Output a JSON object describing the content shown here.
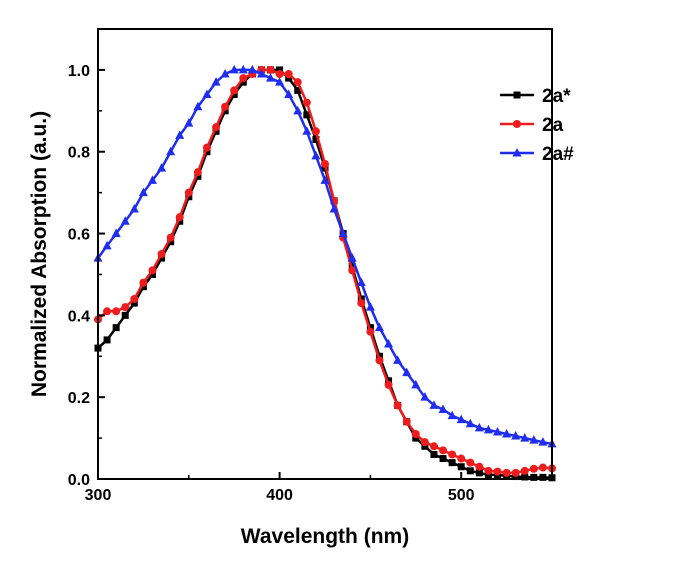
{
  "chart_data": {
    "type": "line",
    "xlabel": "Wavelength (nm)",
    "ylabel": "Normalized Absorption (a.u.)",
    "xlim": [
      300,
      550
    ],
    "ylim": [
      0.0,
      1.1
    ],
    "x_ticks": [
      "300",
      "400",
      "500"
    ],
    "y_ticks": [
      "0.0",
      "0.2",
      "0.4",
      "0.6",
      "0.8",
      "1.0"
    ],
    "legend_position": "top-right",
    "grid": false,
    "series": [
      {
        "name": "2a*",
        "color": "#000000",
        "marker": "square",
        "x": [
          300,
          305,
          310,
          315,
          320,
          325,
          330,
          335,
          340,
          345,
          350,
          355,
          360,
          365,
          370,
          375,
          380,
          385,
          390,
          395,
          400,
          405,
          410,
          415,
          420,
          425,
          430,
          435,
          440,
          445,
          450,
          455,
          460,
          465,
          470,
          475,
          480,
          485,
          490,
          495,
          500,
          505,
          510,
          515,
          520,
          525,
          530,
          535,
          540,
          545,
          550
        ],
        "y": [
          0.32,
          0.34,
          0.37,
          0.4,
          0.43,
          0.47,
          0.5,
          0.54,
          0.58,
          0.63,
          0.69,
          0.74,
          0.8,
          0.85,
          0.9,
          0.94,
          0.97,
          0.99,
          1.0,
          1.0,
          1.0,
          0.98,
          0.95,
          0.89,
          0.83,
          0.76,
          0.68,
          0.6,
          0.52,
          0.44,
          0.37,
          0.3,
          0.24,
          0.18,
          0.14,
          0.1,
          0.08,
          0.06,
          0.05,
          0.04,
          0.03,
          0.02,
          0.015,
          0.01,
          0.01,
          0.008,
          0.006,
          0.005,
          0.004,
          0.004,
          0.003
        ]
      },
      {
        "name": "2a",
        "color": "#ee1c1c",
        "marker": "circle",
        "x": [
          300,
          305,
          310,
          315,
          320,
          325,
          330,
          335,
          340,
          345,
          350,
          355,
          360,
          365,
          370,
          375,
          380,
          385,
          390,
          395,
          400,
          405,
          410,
          415,
          420,
          425,
          430,
          435,
          440,
          445,
          450,
          455,
          460,
          465,
          470,
          475,
          480,
          485,
          490,
          495,
          500,
          505,
          510,
          515,
          520,
          525,
          530,
          535,
          540,
          545,
          550
        ],
        "y": [
          0.39,
          0.41,
          0.41,
          0.42,
          0.44,
          0.48,
          0.51,
          0.55,
          0.59,
          0.64,
          0.7,
          0.75,
          0.81,
          0.86,
          0.91,
          0.95,
          0.98,
          0.99,
          1.0,
          1.0,
          0.99,
          0.99,
          0.97,
          0.92,
          0.85,
          0.77,
          0.68,
          0.59,
          0.51,
          0.43,
          0.36,
          0.29,
          0.23,
          0.18,
          0.14,
          0.11,
          0.09,
          0.08,
          0.07,
          0.06,
          0.05,
          0.04,
          0.03,
          0.02,
          0.018,
          0.015,
          0.015,
          0.02,
          0.025,
          0.028,
          0.026
        ]
      },
      {
        "name": "2a#",
        "color": "#1e2df0",
        "marker": "triangle",
        "x": [
          300,
          305,
          310,
          315,
          320,
          325,
          330,
          335,
          340,
          345,
          350,
          355,
          360,
          365,
          370,
          375,
          380,
          385,
          390,
          395,
          400,
          405,
          410,
          415,
          420,
          425,
          430,
          435,
          440,
          445,
          450,
          455,
          460,
          465,
          470,
          475,
          480,
          485,
          490,
          495,
          500,
          505,
          510,
          515,
          520,
          525,
          530,
          535,
          540,
          545,
          550
        ],
        "y": [
          0.54,
          0.57,
          0.6,
          0.63,
          0.66,
          0.7,
          0.73,
          0.76,
          0.8,
          0.84,
          0.87,
          0.91,
          0.94,
          0.97,
          0.99,
          1.0,
          1.0,
          1.0,
          0.99,
          0.98,
          0.97,
          0.94,
          0.9,
          0.85,
          0.79,
          0.73,
          0.66,
          0.6,
          0.54,
          0.48,
          0.42,
          0.37,
          0.33,
          0.29,
          0.26,
          0.23,
          0.2,
          0.18,
          0.17,
          0.155,
          0.145,
          0.135,
          0.125,
          0.12,
          0.115,
          0.11,
          0.105,
          0.1,
          0.095,
          0.09,
          0.086
        ]
      }
    ]
  }
}
